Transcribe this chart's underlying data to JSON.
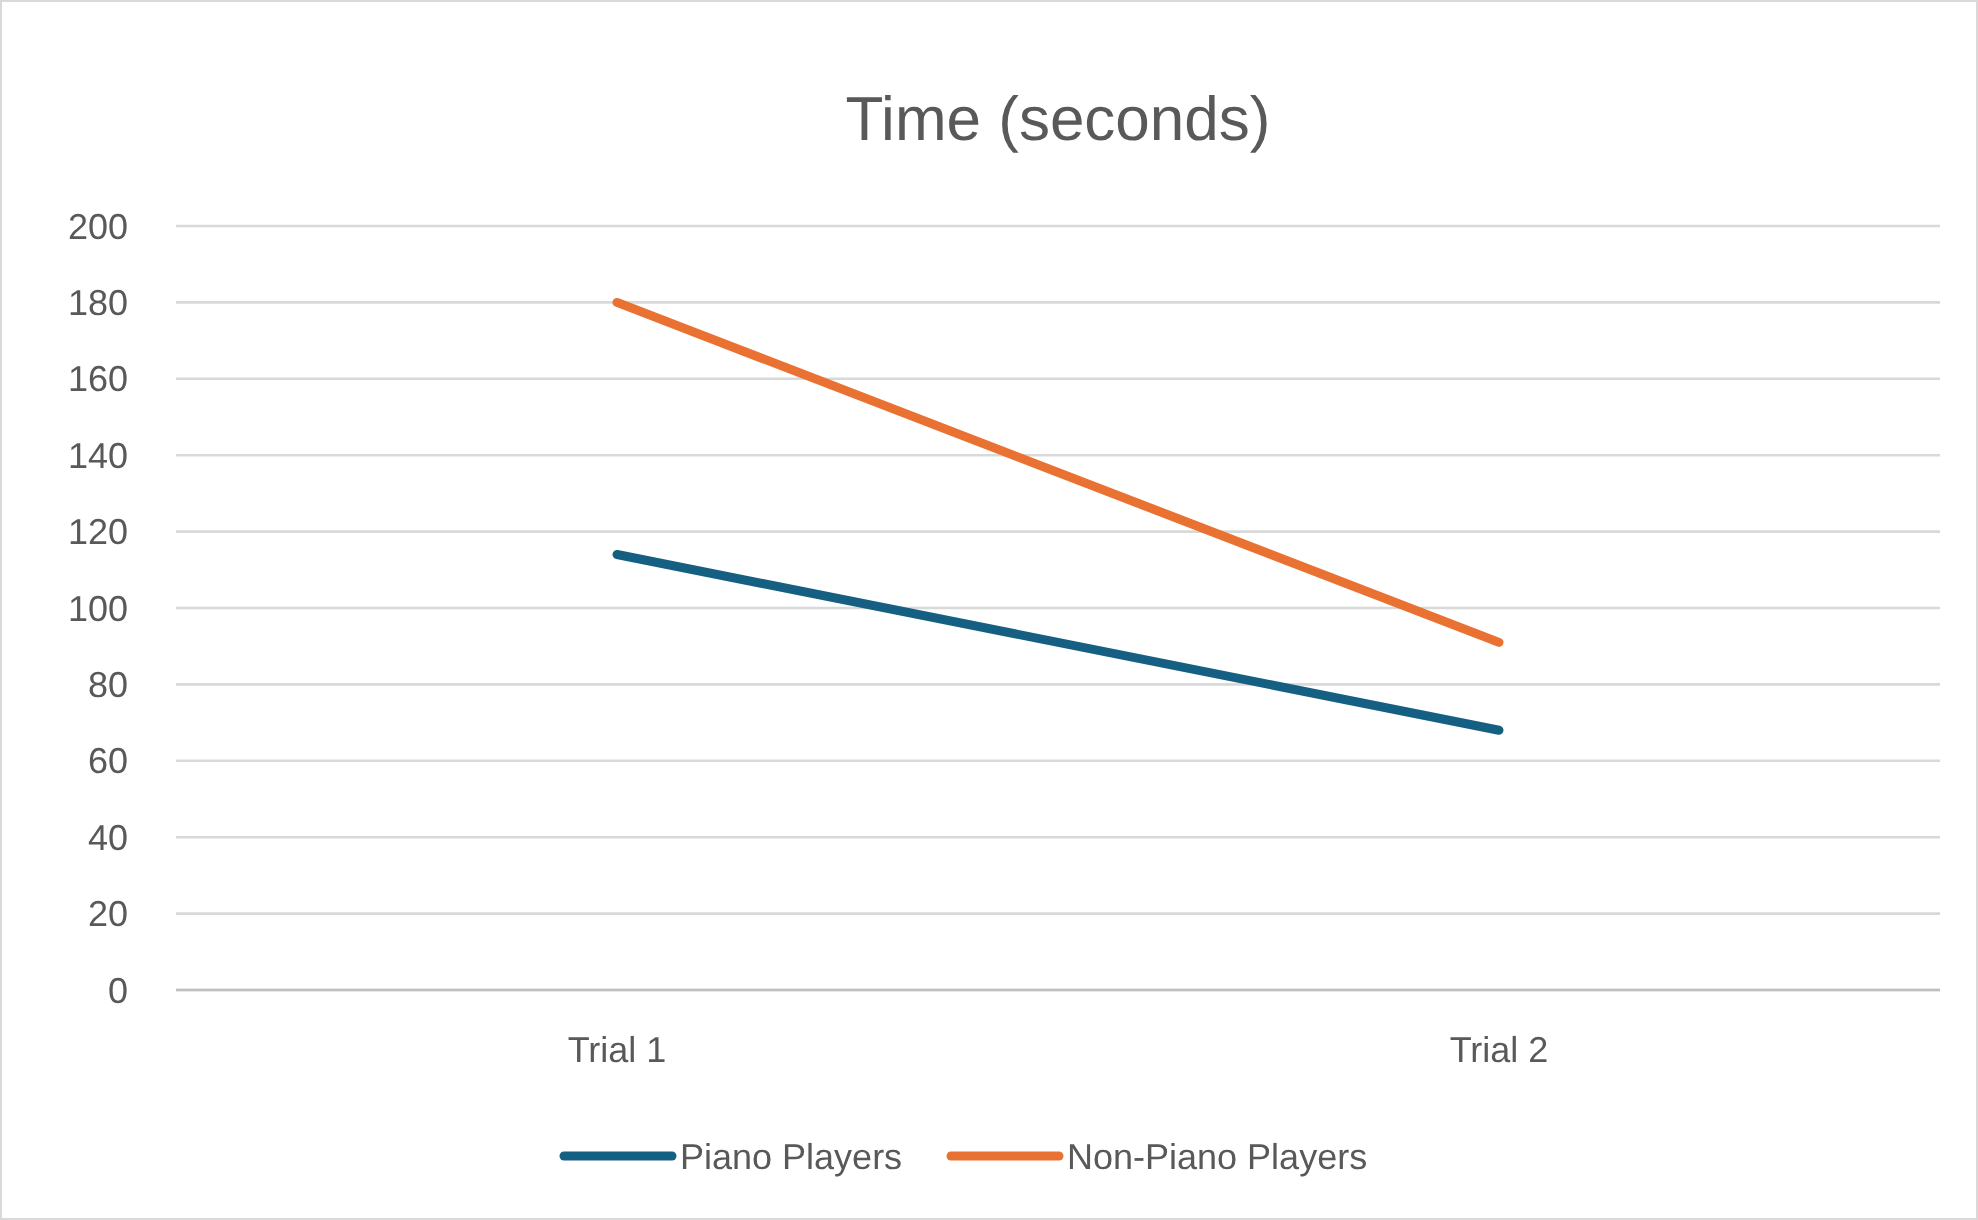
{
  "chart_data": {
    "type": "line",
    "title": "Time (seconds)",
    "categories": [
      "Trial 1",
      "Trial 2"
    ],
    "series": [
      {
        "name": "Piano Players",
        "color": "#156082",
        "values": [
          114,
          68
        ]
      },
      {
        "name": "Non-Piano Players",
        "color": "#e97132",
        "values": [
          180,
          91
        ]
      }
    ],
    "ylim": [
      0,
      200
    ],
    "yticks": [
      0,
      20,
      40,
      60,
      80,
      100,
      120,
      140,
      160,
      180,
      200
    ],
    "grid": "y",
    "legend": "bottom",
    "marker": "none",
    "line_style": "solid"
  }
}
